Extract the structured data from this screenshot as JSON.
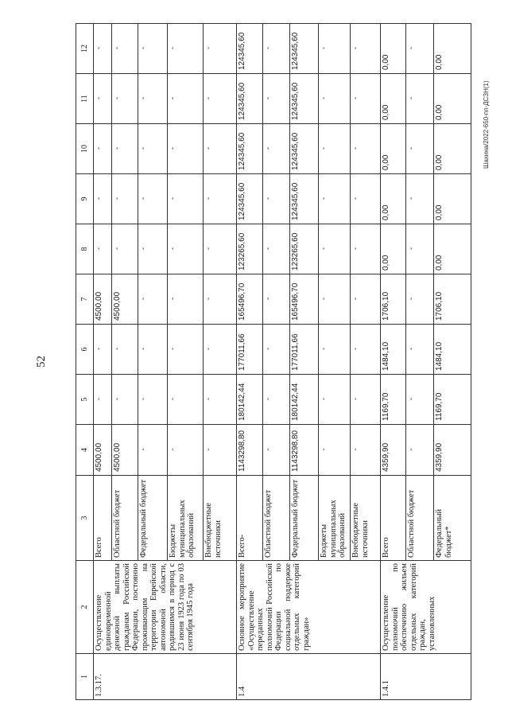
{
  "page_number": "52",
  "footer": "Шахина/2022-650-пп-ДСЗН(1)",
  "header": [
    "1",
    "2",
    "3",
    "4",
    "5",
    "6",
    "7",
    "8",
    "9",
    "10",
    "11",
    "12"
  ],
  "groups": [
    {
      "code": "1.3.17.",
      "name": "Осуществление единовременной денежной выплаты гражданам Российской Федерации, постоянно проживающим на территории Еврейской автономной области, родившимся в период с 23 июня 1923 года по 03 сентября 1945 года",
      "rows": [
        {
          "source": "Всего",
          "values": [
            "4500,00",
            "-",
            "-",
            "4500,00",
            "-",
            "-",
            "-",
            "-",
            "-"
          ]
        },
        {
          "source": "Областной бюджет",
          "values": [
            "4500,00",
            "-",
            "-",
            "4500,00",
            "-",
            "-",
            "-",
            "-",
            "-"
          ]
        },
        {
          "source": "Федеральный бюджет",
          "values": [
            "-",
            "-",
            "-",
            "-",
            "-",
            "-",
            "-",
            "-",
            "-"
          ]
        },
        {
          "source": "Бюджеты муниципальных образований",
          "values": [
            "-",
            "-",
            "-",
            "-",
            "-",
            "-",
            "-",
            "-",
            "-"
          ]
        },
        {
          "source": "Внебюджетные источники",
          "values": [
            "-",
            "-",
            "-",
            "-",
            "-",
            "-",
            "-",
            "-",
            "-"
          ]
        }
      ]
    },
    {
      "code": "1.4",
      "name": "Основное мероприятие «Осуществление переданных полномочий Российской Федерации по социальной поддержке отдельных категорий граждан»",
      "rows": [
        {
          "source": "Всего-",
          "values": [
            "1143298,80",
            "180142,44",
            "177011,66",
            "165496,70",
            "123265,60",
            "124345,60",
            "124345,60",
            "124345,60",
            "124345,60"
          ]
        },
        {
          "source": "Областной бюджет",
          "values": [
            "-",
            "-",
            "-",
            "-",
            "-",
            "-",
            "-",
            "-",
            "-"
          ]
        },
        {
          "source": "Федеральный бюджет",
          "values": [
            "1143298,80",
            "180142,44",
            "177011,66",
            "165496,70",
            "123265,60",
            "124345,60",
            "124345,60",
            "124345,60",
            "124345,60"
          ]
        },
        {
          "source": "Бюджеты муниципальных образований",
          "values": [
            "-",
            "-",
            "-",
            "-",
            "-",
            "-",
            "-",
            "-",
            "-"
          ]
        },
        {
          "source": "Внебюджетные источники",
          "values": [
            "-",
            "-",
            "-",
            "-",
            "-",
            "-",
            "-",
            "-",
            "-"
          ]
        }
      ]
    },
    {
      "code": "1.4.1",
      "name": "Осуществление полномочий по обеспечению жильем отдельных категорий граждан, установленных",
      "rows": [
        {
          "source": "Всего",
          "values": [
            "4359,90",
            "1169,70",
            "1484,10",
            "1706,10",
            "0,00",
            "0,00",
            "0,00",
            "0,00",
            "0,00"
          ]
        },
        {
          "source": "Областной бюджет",
          "values": [
            "-",
            "-",
            "-",
            "-",
            "-",
            "-",
            "-",
            "-",
            "-"
          ]
        },
        {
          "source": "Федеральный бюджет*",
          "values": [
            "4359,90",
            "1169,70",
            "1484,10",
            "1706,10",
            "0,00",
            "0,00",
            "0,00",
            "0,00",
            "0,00"
          ]
        }
      ]
    }
  ]
}
